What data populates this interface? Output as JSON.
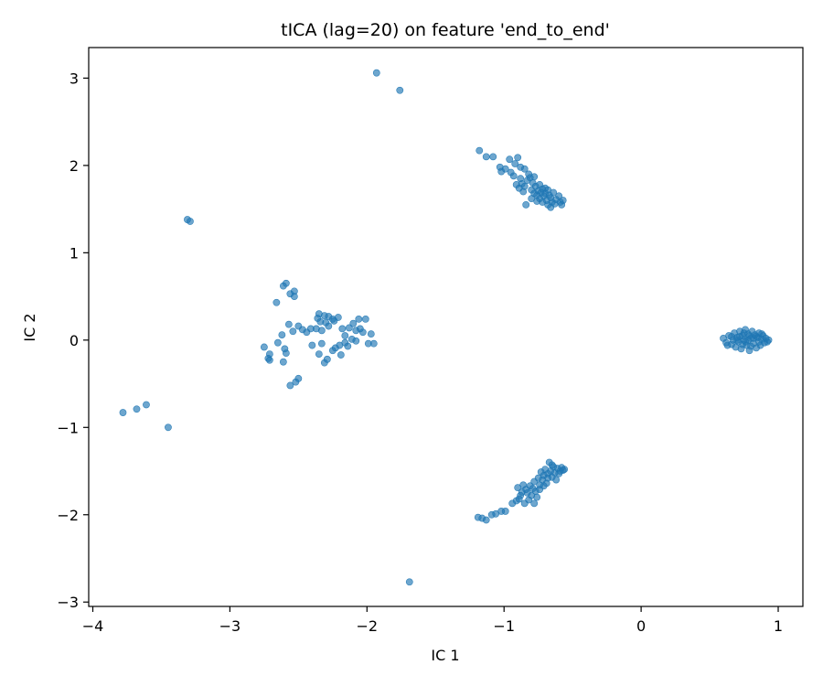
{
  "chart_data": {
    "type": "scatter",
    "title": "tICA (lag=20) on feature 'end_to_end'",
    "xlabel": "IC 1",
    "ylabel": "IC 2",
    "xlim": [
      -4.03,
      1.18
    ],
    "ylim": [
      -3.05,
      3.35
    ],
    "xticks": [
      -4,
      -3,
      -2,
      -1,
      0,
      1
    ],
    "yticks": [
      -3,
      -2,
      -1,
      0,
      1,
      2,
      3
    ],
    "xtick_labels": [
      "−4",
      "−3",
      "−2",
      "−1",
      "0",
      "1"
    ],
    "ytick_labels": [
      "−3",
      "−2",
      "−1",
      "0",
      "1",
      "2",
      "3"
    ],
    "grid": false,
    "marker_color": "#1f77b4",
    "marker_alpha": 0.65,
    "points": [
      [
        -1.93,
        3.06
      ],
      [
        -1.76,
        2.86
      ],
      [
        -3.31,
        1.38
      ],
      [
        -3.29,
        1.36
      ],
      [
        -3.78,
        -0.83
      ],
      [
        -3.68,
        -0.79
      ],
      [
        -3.61,
        -0.74
      ],
      [
        -3.45,
        -1.0
      ],
      [
        -1.69,
        -2.77
      ],
      [
        -2.59,
        0.65
      ],
      [
        -2.61,
        0.62
      ],
      [
        -2.53,
        0.56
      ],
      [
        -2.56,
        0.53
      ],
      [
        -2.53,
        0.5
      ],
      [
        -2.66,
        0.43
      ],
      [
        -2.57,
        0.18
      ],
      [
        -2.54,
        0.1
      ],
      [
        -2.5,
        0.16
      ],
      [
        -2.47,
        0.12
      ],
      [
        -2.44,
        0.09
      ],
      [
        -2.62,
        0.06
      ],
      [
        -2.65,
        -0.03
      ],
      [
        -2.75,
        -0.08
      ],
      [
        -2.71,
        -0.16
      ],
      [
        -2.72,
        -0.21
      ],
      [
        -2.71,
        -0.23
      ],
      [
        -2.6,
        -0.1
      ],
      [
        -2.59,
        -0.15
      ],
      [
        -2.61,
        -0.25
      ],
      [
        -2.56,
        -0.52
      ],
      [
        -2.52,
        -0.48
      ],
      [
        -2.5,
        -0.44
      ],
      [
        -2.35,
        0.3
      ],
      [
        -2.31,
        0.28
      ],
      [
        -2.28,
        0.27
      ],
      [
        -2.25,
        0.24
      ],
      [
        -2.36,
        0.25
      ],
      [
        -2.34,
        0.21
      ],
      [
        -2.3,
        0.2
      ],
      [
        -2.37,
        0.13
      ],
      [
        -2.41,
        0.13
      ],
      [
        -2.33,
        0.11
      ],
      [
        -2.28,
        0.16
      ],
      [
        -2.24,
        0.22
      ],
      [
        -2.21,
        0.26
      ],
      [
        -2.18,
        0.13
      ],
      [
        -2.16,
        0.05
      ],
      [
        -2.13,
        0.14
      ],
      [
        -2.1,
        0.19
      ],
      [
        -2.08,
        0.11
      ],
      [
        -2.05,
        0.13
      ],
      [
        -2.06,
        0.24
      ],
      [
        -2.01,
        0.24
      ],
      [
        -2.03,
        0.09
      ],
      [
        -1.99,
        -0.04
      ],
      [
        -1.95,
        -0.04
      ],
      [
        -1.97,
        0.07
      ],
      [
        -2.4,
        -0.06
      ],
      [
        -2.33,
        -0.04
      ],
      [
        -2.35,
        -0.16
      ],
      [
        -2.29,
        -0.22
      ],
      [
        -2.31,
        -0.26
      ],
      [
        -2.25,
        -0.12
      ],
      [
        -2.2,
        -0.06
      ],
      [
        -2.16,
        -0.03
      ],
      [
        -2.14,
        -0.07
      ],
      [
        -2.19,
        -0.17
      ],
      [
        -2.11,
        0.01
      ],
      [
        -2.08,
        -0.01
      ],
      [
        -2.23,
        -0.09
      ],
      [
        -1.18,
        2.17
      ],
      [
        -1.13,
        2.1
      ],
      [
        -1.08,
        2.1
      ],
      [
        -1.03,
        1.98
      ],
      [
        -1.02,
        1.93
      ],
      [
        -0.99,
        1.96
      ],
      [
        -0.96,
        2.07
      ],
      [
        -0.95,
        1.92
      ],
      [
        -0.92,
        2.02
      ],
      [
        -0.9,
        2.09
      ],
      [
        -0.93,
        1.88
      ],
      [
        -0.88,
        1.98
      ],
      [
        -0.85,
        1.96
      ],
      [
        -0.91,
        1.78
      ],
      [
        -0.89,
        1.74
      ],
      [
        -0.87,
        1.79
      ],
      [
        -0.85,
        1.76
      ],
      [
        -0.83,
        1.83
      ],
      [
        -0.81,
        1.86
      ],
      [
        -0.8,
        1.72
      ],
      [
        -0.79,
        1.8
      ],
      [
        -0.78,
        1.68
      ],
      [
        -0.77,
        1.76
      ],
      [
        -0.76,
        1.66
      ],
      [
        -0.75,
        1.71
      ],
      [
        -0.74,
        1.62
      ],
      [
        -0.73,
        1.69
      ],
      [
        -0.72,
        1.58
      ],
      [
        -0.71,
        1.65
      ],
      [
        -0.7,
        1.74
      ],
      [
        -0.69,
        1.6
      ],
      [
        -0.68,
        1.55
      ],
      [
        -0.67,
        1.66
      ],
      [
        -0.66,
        1.63
      ],
      [
        -0.65,
        1.58
      ],
      [
        -0.64,
        1.69
      ],
      [
        -0.63,
        1.56
      ],
      [
        -0.62,
        1.61
      ],
      [
        -0.6,
        1.65
      ],
      [
        -0.59,
        1.58
      ],
      [
        -0.58,
        1.55
      ],
      [
        -0.57,
        1.6
      ],
      [
        -0.82,
        1.9
      ],
      [
        -0.78,
        1.87
      ],
      [
        -0.74,
        1.78
      ],
      [
        -0.72,
        1.73
      ],
      [
        -0.7,
        1.68
      ],
      [
        -0.84,
        1.55
      ],
      [
        -0.8,
        1.62
      ],
      [
        -0.76,
        1.59
      ],
      [
        -0.68,
        1.72
      ],
      [
        -0.66,
        1.52
      ],
      [
        -0.86,
        1.7
      ],
      [
        -0.88,
        1.85
      ],
      [
        -1.19,
        -2.03
      ],
      [
        -1.16,
        -2.04
      ],
      [
        -1.13,
        -2.06
      ],
      [
        -1.09,
        -2.0
      ],
      [
        -1.06,
        -1.99
      ],
      [
        -1.02,
        -1.96
      ],
      [
        -0.99,
        -1.96
      ],
      [
        -0.94,
        -1.87
      ],
      [
        -0.91,
        -1.84
      ],
      [
        -0.88,
        -1.78
      ],
      [
        -0.86,
        -1.66
      ],
      [
        -0.84,
        -1.71
      ],
      [
        -0.83,
        -1.75
      ],
      [
        -0.81,
        -1.67
      ],
      [
        -0.8,
        -1.78
      ],
      [
        -0.79,
        -1.7
      ],
      [
        -0.78,
        -1.62
      ],
      [
        -0.77,
        -1.73
      ],
      [
        -0.76,
        -1.8
      ],
      [
        -0.75,
        -1.58
      ],
      [
        -0.74,
        -1.66
      ],
      [
        -0.73,
        -1.51
      ],
      [
        -0.72,
        -1.6
      ],
      [
        -0.71,
        -1.55
      ],
      [
        -0.7,
        -1.48
      ],
      [
        -0.69,
        -1.64
      ],
      [
        -0.68,
        -1.53
      ],
      [
        -0.67,
        -1.4
      ],
      [
        -0.66,
        -1.5
      ],
      [
        -0.65,
        -1.57
      ],
      [
        -0.64,
        -1.45
      ],
      [
        -0.63,
        -1.52
      ],
      [
        -0.62,
        -1.6
      ],
      [
        -0.61,
        -1.47
      ],
      [
        -0.6,
        -1.53
      ],
      [
        -0.59,
        -1.5
      ],
      [
        -0.58,
        -1.46
      ],
      [
        -0.57,
        -1.49
      ],
      [
        -0.56,
        -1.48
      ],
      [
        -0.82,
        -1.83
      ],
      [
        -0.85,
        -1.87
      ],
      [
        -0.89,
        -1.82
      ],
      [
        -0.78,
        -1.87
      ],
      [
        -0.74,
        -1.71
      ],
      [
        -0.71,
        -1.67
      ],
      [
        -0.68,
        -1.58
      ],
      [
        -0.65,
        -1.43
      ],
      [
        -0.87,
        -1.74
      ],
      [
        -0.9,
        -1.69
      ],
      [
        0.6,
        0.02
      ],
      [
        0.62,
        -0.03
      ],
      [
        0.64,
        0.05
      ],
      [
        0.66,
        -0.05
      ],
      [
        0.67,
        0.0
      ],
      [
        0.68,
        0.08
      ],
      [
        0.69,
        -0.08
      ],
      [
        0.7,
        0.03
      ],
      [
        0.71,
        -0.02
      ],
      [
        0.72,
        0.1
      ],
      [
        0.73,
        -0.1
      ],
      [
        0.74,
        0.05
      ],
      [
        0.75,
        0.0
      ],
      [
        0.76,
        0.12
      ],
      [
        0.77,
        -0.06
      ],
      [
        0.78,
        0.07
      ],
      [
        0.79,
        -0.12
      ],
      [
        0.8,
        0.02
      ],
      [
        0.81,
        0.1
      ],
      [
        0.82,
        -0.04
      ],
      [
        0.83,
        0.06
      ],
      [
        0.84,
        -0.09
      ],
      [
        0.85,
        0.03
      ],
      [
        0.86,
        0.08
      ],
      [
        0.87,
        -0.06
      ],
      [
        0.88,
        0.01
      ],
      [
        0.89,
        0.05
      ],
      [
        0.9,
        -0.03
      ],
      [
        0.91,
        0.02
      ],
      [
        0.93,
        0.0
      ],
      [
        0.7,
        0.0
      ],
      [
        0.74,
        -0.05
      ],
      [
        0.78,
        0.0
      ],
      [
        0.82,
        0.02
      ],
      [
        0.76,
        -0.02
      ],
      [
        0.72,
        0.04
      ],
      [
        0.8,
        -0.07
      ],
      [
        0.84,
        0.04
      ],
      [
        0.66,
        0.04
      ],
      [
        0.63,
        -0.06
      ],
      [
        0.86,
        -0.02
      ],
      [
        0.88,
        0.07
      ],
      [
        0.92,
        -0.02
      ],
      [
        0.75,
        0.08
      ],
      [
        0.79,
        0.05
      ]
    ]
  }
}
